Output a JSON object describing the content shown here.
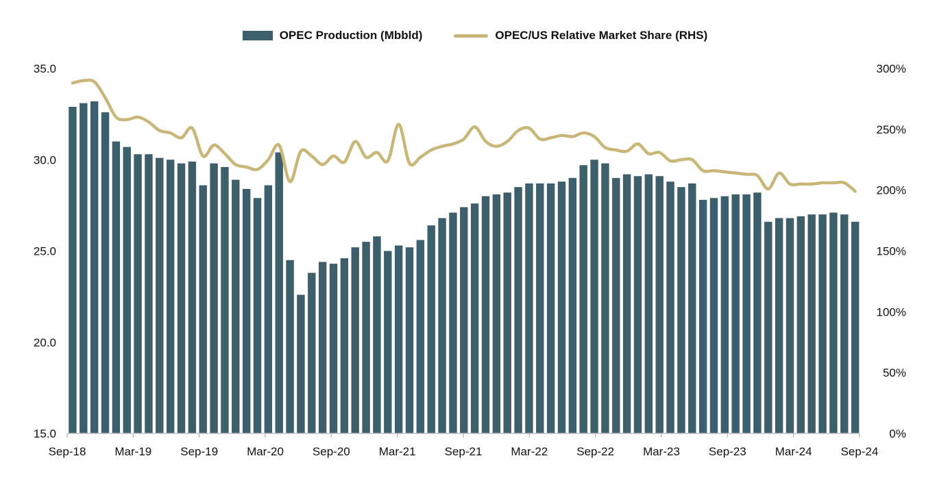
{
  "colors": {
    "bar": "#3c5f6b",
    "line": "#c9b77a",
    "axis": "#bfbfbf",
    "text": "#111111"
  },
  "chart_data": {
    "type": "bar",
    "title": "",
    "xlabel": "",
    "ylabel": "",
    "ylim": [
      15,
      35
    ],
    "y2lim": [
      0,
      300
    ],
    "legend_position": "top-center",
    "grid": false,
    "y_ticks": [
      "15.0",
      "20.0",
      "25.0",
      "30.0",
      "35.0"
    ],
    "y2_ticks": [
      "0%",
      "50%",
      "100%",
      "150%",
      "200%",
      "250%",
      "300%"
    ],
    "x_tick_labels": [
      {
        "index": 0,
        "label": "Sep-18"
      },
      {
        "index": 6,
        "label": "Mar-19"
      },
      {
        "index": 12,
        "label": "Sep-19"
      },
      {
        "index": 18,
        "label": "Mar-20"
      },
      {
        "index": 24,
        "label": "Sep-20"
      },
      {
        "index": 30,
        "label": "Mar-21"
      },
      {
        "index": 36,
        "label": "Sep-21"
      },
      {
        "index": 42,
        "label": "Mar-22"
      },
      {
        "index": 48,
        "label": "Sep-22"
      },
      {
        "index": 54,
        "label": "Mar-23"
      },
      {
        "index": 60,
        "label": "Sep-23"
      },
      {
        "index": 66,
        "label": "Mar-24"
      },
      {
        "index": 72,
        "label": "Sep-24"
      }
    ],
    "series": [
      {
        "name": "OPEC Production (Mbbld)",
        "type": "bar",
        "axis": "left",
        "values": [
          32.9,
          33.1,
          33.2,
          32.6,
          31.0,
          30.7,
          30.3,
          30.3,
          30.1,
          30.0,
          29.8,
          29.9,
          28.6,
          29.8,
          29.6,
          28.9,
          28.4,
          27.9,
          28.6,
          30.4,
          24.5,
          22.6,
          23.8,
          24.4,
          24.3,
          24.6,
          25.2,
          25.5,
          25.8,
          25.0,
          25.3,
          25.2,
          25.6,
          26.4,
          26.8,
          27.1,
          27.4,
          27.6,
          28.0,
          28.1,
          28.2,
          28.5,
          28.7,
          28.7,
          28.7,
          28.8,
          29.0,
          29.7,
          30.0,
          29.8,
          29.0,
          29.2,
          29.1,
          29.2,
          29.1,
          28.8,
          28.5,
          28.7,
          27.8,
          27.9,
          28.0,
          28.1,
          28.1,
          28.2,
          26.6,
          26.8,
          26.8,
          26.9,
          27.0,
          27.0,
          27.1,
          27.0,
          26.6
        ]
      },
      {
        "name": "OPEC/US Relative Market Share (RHS)",
        "type": "line",
        "axis": "right",
        "values": [
          288,
          290,
          289,
          276,
          260,
          258,
          260,
          256,
          249,
          247,
          243,
          251,
          228,
          237,
          230,
          221,
          219,
          217,
          225,
          237,
          207,
          232,
          228,
          221,
          228,
          223,
          240,
          227,
          231,
          224,
          254,
          222,
          227,
          233,
          236,
          238,
          242,
          252,
          240,
          236,
          240,
          249,
          251,
          242,
          243,
          245,
          244,
          247,
          244,
          235,
          233,
          232,
          238,
          230,
          231,
          224,
          225,
          225,
          216,
          216,
          215,
          214,
          213,
          212,
          201,
          214,
          205,
          205,
          205,
          206,
          206,
          206,
          199
        ]
      }
    ]
  }
}
